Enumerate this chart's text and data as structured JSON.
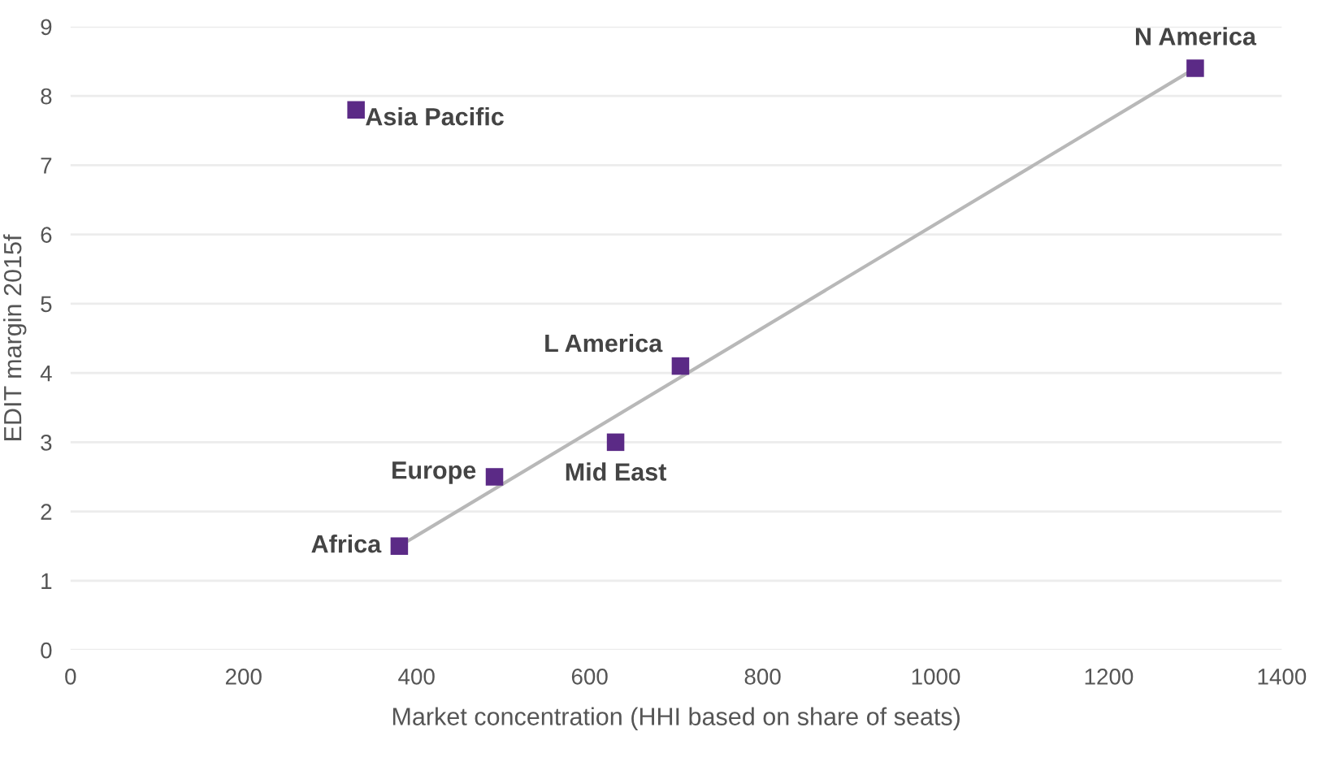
{
  "chart_data": {
    "type": "scatter",
    "xlabel": "Market concentration (HHI based on share of seats)",
    "ylabel": "EDIT margin 2015f",
    "series": [
      {
        "color": "#5b2a86",
        "marker": "square",
        "x": [
          330,
          380,
          490,
          630,
          705,
          1300
        ],
        "values": [
          7.8,
          1.5,
          2.5,
          3.0,
          4.1,
          8.4
        ]
      },
      {
        "type": "line",
        "marker": "none",
        "color": "#b8b8b8",
        "x": [
          380,
          1300
        ],
        "values": [
          1.5,
          8.4
        ]
      }
    ],
    "annotations": [
      {
        "text": "Asia Pacific",
        "x": 330,
        "y": 7.8
      },
      {
        "text": "Africa",
        "x": 380,
        "y": 1.5
      },
      {
        "text": "Europe",
        "x": 490,
        "y": 2.5
      },
      {
        "text": "Mid East",
        "x": 630,
        "y": 3.0
      },
      {
        "text": "L America",
        "x": 705,
        "y": 4.1
      },
      {
        "text": "N America",
        "x": 1300,
        "y": 8.4
      }
    ],
    "xlim": [
      0,
      1400
    ],
    "xticks": [
      0,
      200,
      400,
      600,
      800,
      1000,
      1200,
      1400
    ],
    "ylim": [
      0,
      9
    ],
    "yticks": [
      0,
      1,
      2,
      3,
      4,
      5,
      6,
      7,
      8,
      9
    ],
    "grid": "y",
    "line_style": "solid",
    "legend": false
  }
}
